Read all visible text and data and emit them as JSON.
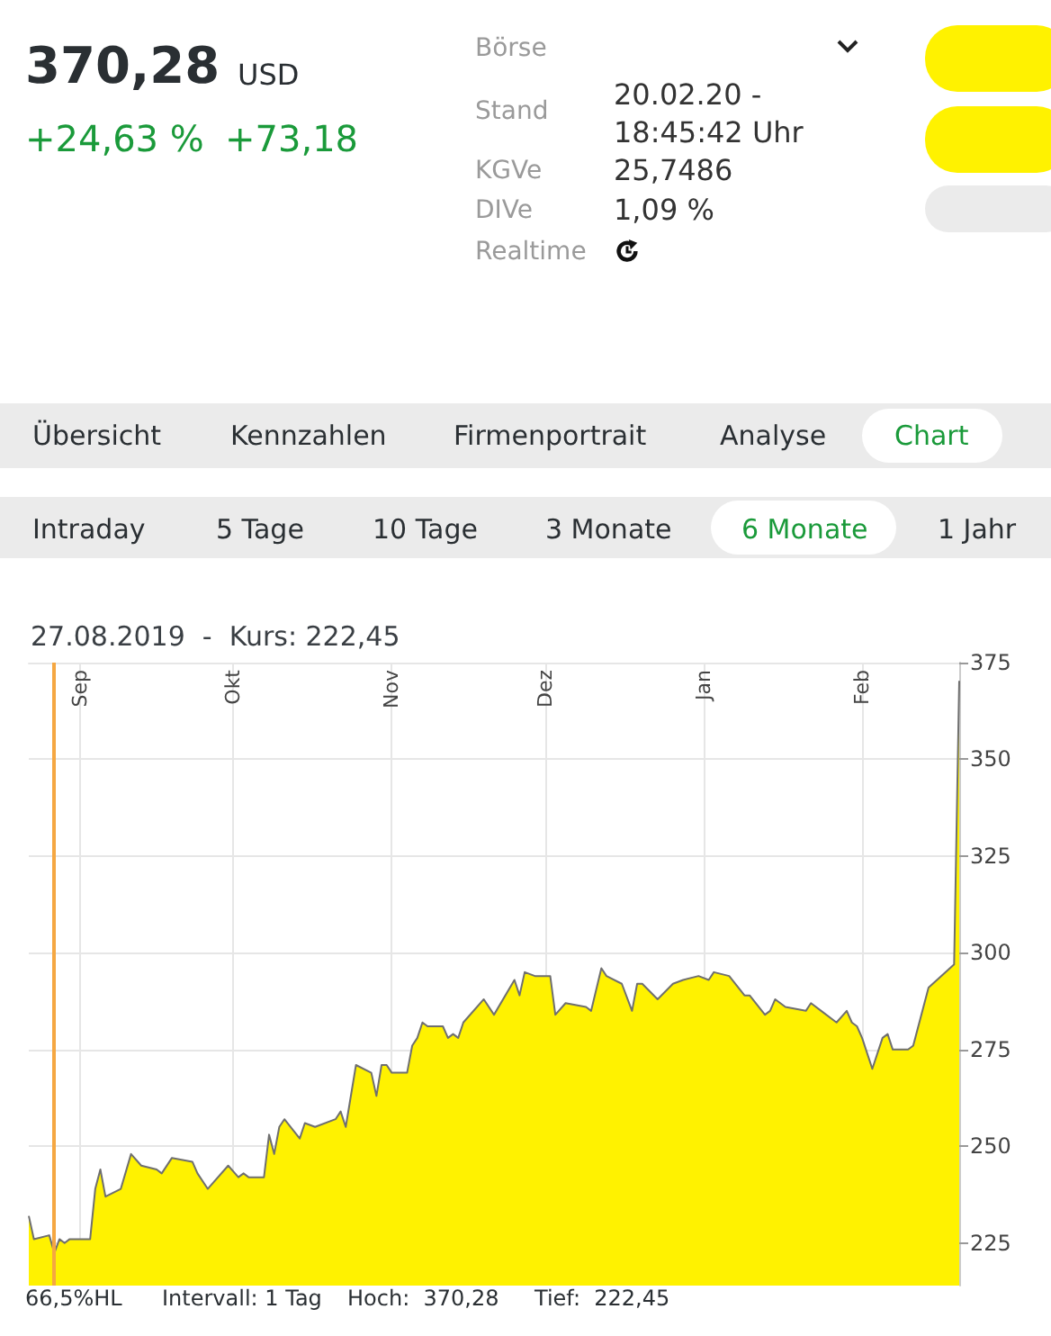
{
  "chart_data": [
    {
      "type": "other",
      "annotations": [
        "370,28",
        "USD",
        "+24,63 %",
        "+73,18",
        "Börse",
        "Stand",
        "20.02.20 - 18:45:42 Uhr",
        "KGVe",
        "25,7486",
        "DIVe",
        "1,09 %",
        "Realtime",
        "Übersicht",
        "Kennzahlen",
        "Firmenportrait",
        "Analyse",
        "Chart",
        "Intraday",
        "5 Tage",
        "10 Tage",
        "3 Monate",
        "6 Monate",
        "1 Jahr"
      ]
    },
    {
      "type": "area",
      "title": "27.08.2019  -  Kurs: 222,45",
      "x": [
        "2019-08-22",
        "2019-08-23",
        "2019-08-26",
        "2019-08-27",
        "2019-08-28",
        "2019-08-29",
        "2019-08-30",
        "2019-09-03",
        "2019-09-04",
        "2019-09-05",
        "2019-09-06",
        "2019-09-09",
        "2019-09-11",
        "2019-09-13",
        "2019-09-16",
        "2019-09-17",
        "2019-09-19",
        "2019-09-23",
        "2019-09-24",
        "2019-09-26",
        "2019-09-30",
        "2019-10-02",
        "2019-10-03",
        "2019-10-04",
        "2019-10-07",
        "2019-10-08",
        "2019-10-09",
        "2019-10-10",
        "2019-10-11",
        "2019-10-14",
        "2019-10-15",
        "2019-10-17",
        "2019-10-21",
        "2019-10-22",
        "2019-10-23",
        "2019-10-25",
        "2019-10-28",
        "2019-10-29",
        "2019-10-30",
        "2019-10-31",
        "2019-11-01",
        "2019-11-04",
        "2019-11-05",
        "2019-11-06",
        "2019-11-07",
        "2019-11-08",
        "2019-11-11",
        "2019-11-12",
        "2019-11-13",
        "2019-11-14",
        "2019-11-15",
        "2019-11-19",
        "2019-11-21",
        "2019-11-25",
        "2019-11-26",
        "2019-11-27",
        "2019-11-29",
        "2019-12-02",
        "2019-12-03",
        "2019-12-05",
        "2019-12-09",
        "2019-12-10",
        "2019-12-12",
        "2019-12-13",
        "2019-12-16",
        "2019-12-18",
        "2019-12-19",
        "2019-12-20",
        "2019-12-23",
        "2019-12-26",
        "2019-12-28",
        "2019-12-31",
        "2020-01-02",
        "2020-01-03",
        "2020-01-06",
        "2020-01-09",
        "2020-01-10",
        "2020-01-13",
        "2020-01-14",
        "2020-01-15",
        "2020-01-17",
        "2020-01-21",
        "2020-01-22",
        "2020-01-24",
        "2020-01-27",
        "2020-01-29",
        "2020-01-30",
        "2020-01-31",
        "2020-02-01",
        "2020-02-03",
        "2020-02-05",
        "2020-02-06",
        "2020-02-07",
        "2020-02-10",
        "2020-02-11",
        "2020-02-14",
        "2020-02-19",
        "2020-02-20"
      ],
      "series": [
        {
          "color": "#fff200",
          "values": [
            232,
            226,
            227,
            222.45,
            226,
            225,
            226,
            226,
            239,
            244,
            237,
            239,
            248,
            245,
            244,
            243,
            247,
            246,
            243,
            239,
            245,
            242,
            243,
            242,
            242,
            253,
            248,
            255,
            257,
            252,
            256,
            255,
            257,
            259,
            255,
            271,
            269,
            263,
            271,
            271,
            269,
            269,
            276,
            278,
            282,
            281,
            281,
            278,
            279,
            278,
            282,
            288,
            284,
            293,
            289,
            295,
            294,
            294,
            284,
            287,
            286,
            285,
            296,
            294,
            292,
            285,
            292,
            292,
            288,
            292,
            293,
            294,
            293,
            295,
            294,
            289,
            289,
            284,
            285,
            288,
            286,
            285,
            287,
            285,
            282,
            285,
            282,
            281,
            278,
            270,
            278,
            279,
            275,
            275,
            276,
            291,
            297,
            370.28
          ]
        }
      ],
      "xlim": [
        "2019-08-22",
        "2020-02-20"
      ],
      "xticks": [
        {
          "value": "2019-09-01",
          "label": "Sep"
        },
        {
          "value": "2019-10-01",
          "label": "Okt"
        },
        {
          "value": "2019-11-01",
          "label": "Nov"
        },
        {
          "value": "2019-12-01",
          "label": "Dez"
        },
        {
          "value": "2020-01-01",
          "label": "Jan"
        },
        {
          "value": "2020-02-01",
          "label": "Feb"
        }
      ],
      "ylim": [
        214,
        375
      ],
      "yticks": [
        225,
        250,
        275,
        300,
        325,
        350,
        375
      ],
      "grid": true,
      "marker": "none",
      "ref_lines": [
        {
          "axis": "x",
          "value": "2019-08-27",
          "color": "#f5a742"
        }
      ],
      "annotations": [
        "66,5%HL",
        "Intervall: 1 Tag",
        "Hoch:  370,28",
        "Tief:  222,45"
      ]
    }
  ]
}
